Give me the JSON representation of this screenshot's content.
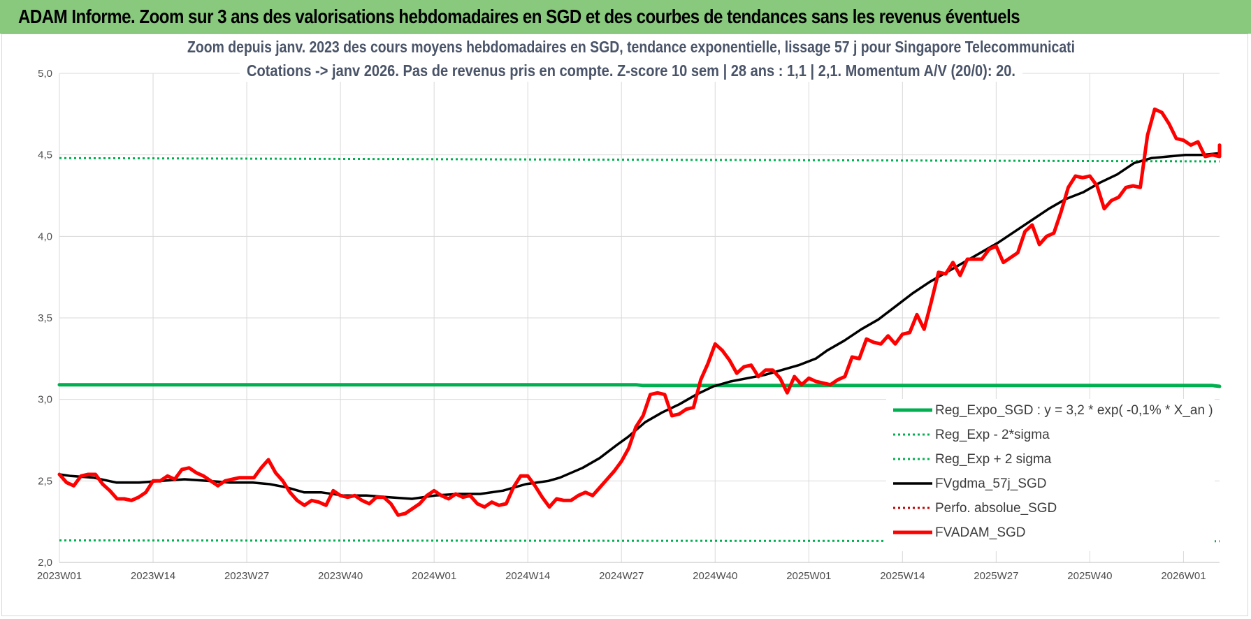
{
  "banner": {
    "text": "ADAM Informe. Zoom sur 3 ans des valorisations hebdomadaires en SGD et des courbes de tendances sans les revenus éventuels"
  },
  "chart_data": {
    "type": "line",
    "title": [
      "Zoom depuis janv. 2023 des cours moyens hebdomadaires en SGD, tendance exponentielle, lissage 57 j pour Singapore Telecommunicati",
      "Cotations -> janv 2026. Pas de revenus pris en compte. Z-score 10 sem  | 28 ans : 1,1 | 2,1. Momentum A/V (20/0): 20."
    ],
    "xlabel": "",
    "ylabel": "",
    "ylim": [
      2.0,
      5.0
    ],
    "yticks": [
      "2,0",
      "2,5",
      "3,0",
      "3,5",
      "4,0",
      "4,5",
      "5,0"
    ],
    "xticks": [
      "2023W01",
      "2023W14",
      "2023W27",
      "2023W40",
      "2024W01",
      "2024W14",
      "2024W27",
      "2024W40",
      "2025W01",
      "2025W14",
      "2025W27",
      "2025W40",
      "2026W01"
    ],
    "grid": true,
    "legend_position": "bottom-right",
    "n_weeks": 162,
    "series": [
      {
        "name": "Reg_Expo_SGD : y = 3,2 * exp( -0,1% *  X_an )",
        "color": "#00b050",
        "style": "solid-thick",
        "points": [
          [
            0,
            3.09
          ],
          [
            80,
            3.09
          ],
          [
            81,
            3.085
          ],
          [
            160,
            3.085
          ],
          [
            161,
            3.08
          ],
          [
            163,
            3.08
          ]
        ]
      },
      {
        "name": "Reg_Exp - 2*sigma",
        "color": "#00b050",
        "style": "dotted",
        "points": [
          [
            0,
            2.135
          ],
          [
            163,
            2.13
          ]
        ]
      },
      {
        "name": "Reg_Exp + 2 sigma",
        "color": "#00b050",
        "style": "dotted",
        "points": [
          [
            0,
            4.48
          ],
          [
            163,
            4.46
          ]
        ]
      },
      {
        "name": "FVgdma_57j_SGD",
        "color": "#000000",
        "style": "solid",
        "points": [
          [
            0,
            2.54
          ],
          [
            2,
            2.53
          ],
          [
            6,
            2.52
          ],
          [
            10,
            2.49
          ],
          [
            14,
            2.49
          ],
          [
            18,
            2.5
          ],
          [
            22,
            2.51
          ],
          [
            26,
            2.5
          ],
          [
            30,
            2.49
          ],
          [
            34,
            2.49
          ],
          [
            37,
            2.48
          ],
          [
            40,
            2.46
          ],
          [
            43,
            2.43
          ],
          [
            46,
            2.43
          ],
          [
            50,
            2.41
          ],
          [
            54,
            2.41
          ],
          [
            58,
            2.4
          ],
          [
            62,
            2.39
          ],
          [
            66,
            2.41
          ],
          [
            70,
            2.42
          ],
          [
            74,
            2.42
          ],
          [
            78,
            2.44
          ],
          [
            82,
            2.48
          ],
          [
            86,
            2.5
          ],
          [
            88,
            2.52
          ],
          [
            92,
            2.58
          ],
          [
            95,
            2.64
          ],
          [
            98,
            2.72
          ],
          [
            100,
            2.77
          ],
          [
            103,
            2.86
          ],
          [
            106,
            2.92
          ],
          [
            109,
            2.97
          ],
          [
            112,
            3.03
          ],
          [
            115,
            3.08
          ],
          [
            118,
            3.11
          ],
          [
            121,
            3.13
          ],
          [
            124,
            3.15
          ],
          [
            127,
            3.18
          ],
          [
            130,
            3.21
          ],
          [
            133,
            3.25
          ],
          [
            135,
            3.3
          ],
          [
            138,
            3.36
          ],
          [
            141,
            3.43
          ],
          [
            144,
            3.49
          ],
          [
            147,
            3.57
          ],
          [
            150,
            3.65
          ],
          [
            153,
            3.72
          ],
          [
            156,
            3.78
          ],
          [
            159,
            3.84
          ],
          [
            162,
            3.9
          ],
          [
            165,
            3.96
          ],
          [
            168,
            4.03
          ],
          [
            171,
            4.1
          ],
          [
            174,
            4.17
          ],
          [
            177,
            4.23
          ],
          [
            180,
            4.27
          ],
          [
            183,
            4.33
          ],
          [
            186,
            4.38
          ],
          [
            189,
            4.45
          ],
          [
            192,
            4.48
          ],
          [
            195,
            4.49
          ],
          [
            198,
            4.5
          ],
          [
            201,
            4.5
          ],
          [
            204,
            4.51
          ]
        ]
      },
      {
        "name": "Perfo. absolue_SGD",
        "color": "#c00000",
        "style": "dotted",
        "points": []
      },
      {
        "name": "FVADAM_SGD",
        "color": "#ff0000",
        "style": "solid-thick",
        "points": [
          [
            0,
            2.54
          ],
          [
            1,
            2.49
          ],
          [
            2,
            2.47
          ],
          [
            3,
            2.53
          ],
          [
            4,
            2.54
          ],
          [
            5,
            2.54
          ],
          [
            6,
            2.48
          ],
          [
            7,
            2.44
          ],
          [
            8,
            2.39
          ],
          [
            9,
            2.39
          ],
          [
            10,
            2.38
          ],
          [
            11,
            2.4
          ],
          [
            12,
            2.43
          ],
          [
            13,
            2.5
          ],
          [
            14,
            2.5
          ],
          [
            15,
            2.53
          ],
          [
            16,
            2.51
          ],
          [
            17,
            2.57
          ],
          [
            18,
            2.58
          ],
          [
            19,
            2.55
          ],
          [
            20,
            2.53
          ],
          [
            21,
            2.5
          ],
          [
            22,
            2.47
          ],
          [
            23,
            2.5
          ],
          [
            24,
            2.51
          ],
          [
            25,
            2.52
          ],
          [
            26,
            2.52
          ],
          [
            27,
            2.52
          ],
          [
            28,
            2.58
          ],
          [
            29,
            2.63
          ],
          [
            30,
            2.55
          ],
          [
            31,
            2.5
          ],
          [
            32,
            2.43
          ],
          [
            33,
            2.38
          ],
          [
            34,
            2.35
          ],
          [
            35,
            2.38
          ],
          [
            36,
            2.37
          ],
          [
            37,
            2.35
          ],
          [
            38,
            2.44
          ],
          [
            39,
            2.41
          ],
          [
            40,
            2.4
          ],
          [
            41,
            2.41
          ],
          [
            42,
            2.38
          ],
          [
            43,
            2.36
          ],
          [
            44,
            2.4
          ],
          [
            45,
            2.4
          ],
          [
            46,
            2.36
          ],
          [
            47,
            2.29
          ],
          [
            48,
            2.3
          ],
          [
            49,
            2.33
          ],
          [
            50,
            2.36
          ],
          [
            51,
            2.41
          ],
          [
            52,
            2.44
          ],
          [
            53,
            2.41
          ],
          [
            54,
            2.39
          ],
          [
            55,
            2.42
          ],
          [
            56,
            2.4
          ],
          [
            57,
            2.41
          ],
          [
            58,
            2.36
          ],
          [
            59,
            2.34
          ],
          [
            60,
            2.37
          ],
          [
            61,
            2.35
          ],
          [
            62,
            2.36
          ],
          [
            63,
            2.46
          ],
          [
            64,
            2.53
          ],
          [
            65,
            2.53
          ],
          [
            66,
            2.47
          ],
          [
            67,
            2.4
          ],
          [
            68,
            2.34
          ],
          [
            69,
            2.39
          ],
          [
            70,
            2.38
          ],
          [
            71,
            2.38
          ],
          [
            72,
            2.41
          ],
          [
            73,
            2.43
          ],
          [
            74,
            2.41
          ],
          [
            75,
            2.46
          ],
          [
            76,
            2.51
          ],
          [
            77,
            2.56
          ],
          [
            78,
            2.62
          ],
          [
            79,
            2.7
          ],
          [
            80,
            2.83
          ],
          [
            81,
            2.9
          ],
          [
            82,
            3.03
          ],
          [
            83,
            3.04
          ],
          [
            84,
            3.03
          ],
          [
            85,
            2.9
          ],
          [
            86,
            2.91
          ],
          [
            87,
            2.94
          ],
          [
            88,
            2.95
          ],
          [
            89,
            3.12
          ],
          [
            90,
            3.22
          ],
          [
            91,
            3.34
          ],
          [
            92,
            3.3
          ],
          [
            93,
            3.24
          ],
          [
            94,
            3.16
          ],
          [
            95,
            3.2
          ],
          [
            96,
            3.21
          ],
          [
            97,
            3.14
          ],
          [
            98,
            3.18
          ],
          [
            99,
            3.18
          ],
          [
            100,
            3.13
          ],
          [
            101,
            3.04
          ],
          [
            102,
            3.14
          ],
          [
            103,
            3.09
          ],
          [
            104,
            3.13
          ],
          [
            105,
            3.11
          ],
          [
            106,
            3.1
          ],
          [
            107,
            3.09
          ],
          [
            108,
            3.12
          ],
          [
            109,
            3.14
          ],
          [
            110,
            3.26
          ],
          [
            111,
            3.25
          ],
          [
            112,
            3.37
          ],
          [
            113,
            3.35
          ],
          [
            114,
            3.34
          ],
          [
            115,
            3.39
          ],
          [
            116,
            3.34
          ],
          [
            117,
            3.4
          ],
          [
            118,
            3.41
          ],
          [
            119,
            3.52
          ],
          [
            120,
            3.43
          ],
          [
            121,
            3.6
          ],
          [
            122,
            3.78
          ],
          [
            123,
            3.77
          ],
          [
            124,
            3.84
          ],
          [
            125,
            3.76
          ],
          [
            126,
            3.86
          ],
          [
            127,
            3.86
          ],
          [
            128,
            3.86
          ],
          [
            129,
            3.92
          ],
          [
            130,
            3.94
          ],
          [
            131,
            3.84
          ],
          [
            132,
            3.87
          ],
          [
            133,
            3.9
          ],
          [
            134,
            4.03
          ],
          [
            135,
            4.07
          ],
          [
            136,
            3.95
          ],
          [
            137,
            4.0
          ],
          [
            138,
            4.02
          ],
          [
            139,
            4.15
          ],
          [
            140,
            4.3
          ],
          [
            141,
            4.37
          ],
          [
            142,
            4.36
          ],
          [
            143,
            4.37
          ],
          [
            144,
            4.31
          ],
          [
            145,
            4.17
          ],
          [
            146,
            4.22
          ],
          [
            147,
            4.24
          ],
          [
            148,
            4.3
          ],
          [
            149,
            4.31
          ],
          [
            150,
            4.3
          ],
          [
            151,
            4.62
          ],
          [
            152,
            4.78
          ],
          [
            153,
            4.76
          ],
          [
            154,
            4.69
          ],
          [
            155,
            4.6
          ],
          [
            156,
            4.59
          ],
          [
            157,
            4.56
          ],
          [
            158,
            4.58
          ],
          [
            159,
            4.49
          ],
          [
            160,
            4.5
          ],
          [
            161,
            4.49
          ],
          [
            162,
            4.56
          ]
        ]
      }
    ]
  }
}
